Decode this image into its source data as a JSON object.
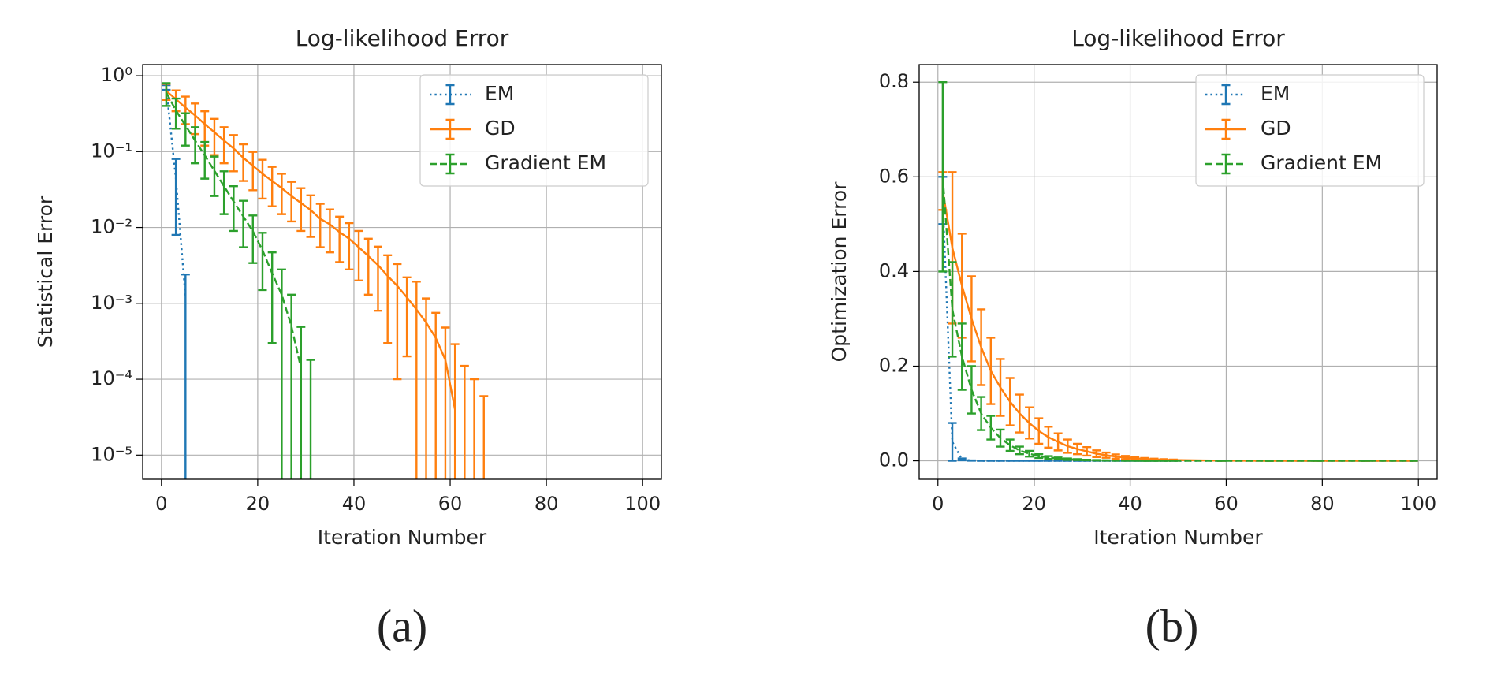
{
  "chart_data": [
    {
      "type": "errorbar",
      "title": "Log-likelihood Error",
      "xlabel": "Iteration Number",
      "ylabel": "Statistical Error",
      "caption": "(a)",
      "log_y": true,
      "grid": true,
      "legend": "upper right",
      "xlim": [
        -3.9,
        103.9
      ],
      "xticks": [
        0,
        20,
        40,
        60,
        80,
        100
      ],
      "ylim": [
        4.8e-06,
        1.4
      ],
      "yticks": [
        {
          "value": 1,
          "label": "10⁰"
        },
        {
          "value": 0.1,
          "label": "10⁻¹"
        },
        {
          "value": 0.01,
          "label": "10⁻²"
        },
        {
          "value": 0.001,
          "label": "10⁻³"
        },
        {
          "value": 0.0001,
          "label": "10⁻⁴"
        },
        {
          "value": 1e-05,
          "label": "10⁻⁵"
        }
      ],
      "series": [
        {
          "name": "EM",
          "color": "#1f77b4",
          "linestyle": "dotted",
          "x": [
            1,
            3,
            5
          ],
          "values": [
            0.7,
            0.044,
            0.0012
          ],
          "errors": [
            0.05,
            0.036,
            0.0012
          ]
        },
        {
          "name": "GD",
          "color": "#ff7f0e",
          "linestyle": "solid",
          "x": [
            1,
            3,
            5,
            7,
            9,
            11,
            13,
            15,
            17,
            19,
            21,
            23,
            25,
            27,
            29,
            31,
            33,
            35,
            37,
            39,
            41,
            43,
            45,
            47,
            49,
            51,
            53,
            55,
            57,
            59,
            61,
            63,
            65,
            67
          ],
          "values": [
            0.63,
            0.49,
            0.38,
            0.3,
            0.23,
            0.18,
            0.14,
            0.11,
            0.083,
            0.065,
            0.051,
            0.041,
            0.033,
            0.026,
            0.021,
            0.017,
            0.013,
            0.011,
            0.0087,
            0.0071,
            0.0055,
            0.0042,
            0.0032,
            0.0023,
            0.0017,
            0.0012,
            0.00083,
            0.00056,
            0.00035,
            0.00018,
            4e-05,
            0,
            0,
            0
          ],
          "errors": [
            0.15,
            0.15,
            0.15,
            0.13,
            0.11,
            0.09,
            0.07,
            0.055,
            0.042,
            0.034,
            0.027,
            0.022,
            0.018,
            0.014,
            0.012,
            0.0095,
            0.0075,
            0.0063,
            0.0052,
            0.0043,
            0.0035,
            0.0029,
            0.0024,
            0.002,
            0.0016,
            0.001,
            0.0011,
            0.0006,
            0.0004,
            0.0003,
            0.00025,
            0.00015,
            0.0001,
            6e-05
          ]
        },
        {
          "name": "Gradient EM",
          "color": "#2ca02c",
          "linestyle": "dashed",
          "x": [
            1,
            3,
            5,
            7,
            9,
            11,
            13,
            15,
            17,
            19,
            21,
            23,
            25,
            27,
            29,
            31
          ],
          "values": [
            0.6,
            0.35,
            0.22,
            0.14,
            0.089,
            0.056,
            0.035,
            0.022,
            0.014,
            0.0089,
            0.005,
            0.0025,
            0.0013,
            0.0005,
            0.00014,
            0
          ],
          "errors": [
            0.2,
            0.15,
            0.1,
            0.07,
            0.045,
            0.03,
            0.02,
            0.013,
            0.0085,
            0.0055,
            0.0035,
            0.0022,
            0.0015,
            0.0008,
            0.00035,
            0.00018
          ]
        }
      ]
    },
    {
      "type": "errorbar",
      "title": "Log-likelihood Error",
      "xlabel": "Iteration Number",
      "ylabel": "Optimization Error",
      "caption": "(b)",
      "log_y": false,
      "grid": true,
      "legend": "upper right",
      "xlim": [
        -3.9,
        103.9
      ],
      "xticks": [
        0,
        20,
        40,
        60,
        80,
        100
      ],
      "ylim": [
        -0.039,
        0.837
      ],
      "yticks": [
        {
          "value": 0,
          "label": "0.0"
        },
        0.2,
        0.4,
        0.6,
        0.8
      ],
      "x": [
        1,
        3,
        5,
        7,
        9,
        11,
        13,
        15,
        17,
        19,
        21,
        23,
        25,
        27,
        29,
        31,
        33,
        35,
        37,
        39,
        41,
        43,
        45,
        47,
        49,
        59,
        69,
        79,
        89,
        99
      ],
      "series": [
        {
          "name": "EM",
          "color": "#1f77b4",
          "linestyle": "dotted",
          "values": [
            0.55,
            0.04,
            0.003,
            0.0005,
            0.0001,
            0,
            0,
            0,
            0,
            0,
            0,
            0,
            0,
            0,
            0,
            0,
            0,
            0,
            0,
            0,
            0,
            0,
            0,
            0,
            0,
            0,
            0,
            0,
            0,
            0
          ],
          "errors": [
            0.05,
            0.04,
            0.002,
            0.0003,
            0,
            0,
            0,
            0,
            0,
            0,
            0,
            0,
            0,
            0,
            0,
            0,
            0,
            0,
            0,
            0,
            0,
            0,
            0,
            0,
            0,
            0,
            0,
            0,
            0,
            0
          ]
        },
        {
          "name": "GD",
          "color": "#ff7f0e",
          "linestyle": "solid",
          "values": [
            0.57,
            0.45,
            0.37,
            0.3,
            0.24,
            0.19,
            0.155,
            0.125,
            0.1,
            0.08,
            0.063,
            0.05,
            0.04,
            0.031,
            0.025,
            0.02,
            0.015,
            0.012,
            0.009,
            0.007,
            0.0055,
            0.004,
            0.003,
            0.0023,
            0.0017,
            0.0004,
            0.0001,
            0,
            0,
            0
          ],
          "errors": [
            0.04,
            0.16,
            0.11,
            0.09,
            0.08,
            0.07,
            0.06,
            0.05,
            0.04,
            0.033,
            0.027,
            0.022,
            0.018,
            0.014,
            0.011,
            0.009,
            0.007,
            0.0055,
            0.0045,
            0.0035,
            0.0028,
            0.002,
            0.0015,
            0.0012,
            0.001,
            0.0003,
            0,
            0,
            0,
            0
          ]
        },
        {
          "name": "Gradient EM",
          "color": "#2ca02c",
          "linestyle": "dashed",
          "values": [
            0.6,
            0.32,
            0.22,
            0.15,
            0.1,
            0.07,
            0.048,
            0.033,
            0.022,
            0.015,
            0.01,
            0.007,
            0.005,
            0.0035,
            0.0025,
            0.0017,
            0.0012,
            0.0008,
            0.0005,
            0.0003,
            0.0002,
            0.0001,
            0.0001,
            0,
            0,
            0,
            0,
            0,
            0,
            0
          ],
          "errors": [
            0.2,
            0.1,
            0.07,
            0.05,
            0.035,
            0.025,
            0.018,
            0.012,
            0.008,
            0.006,
            0.004,
            0.003,
            0.002,
            0.0015,
            0.001,
            0.0007,
            0.0005,
            0.0003,
            0.0002,
            0.0001,
            0,
            0,
            0,
            0,
            0,
            0,
            0,
            0,
            0,
            0
          ]
        }
      ]
    }
  ]
}
